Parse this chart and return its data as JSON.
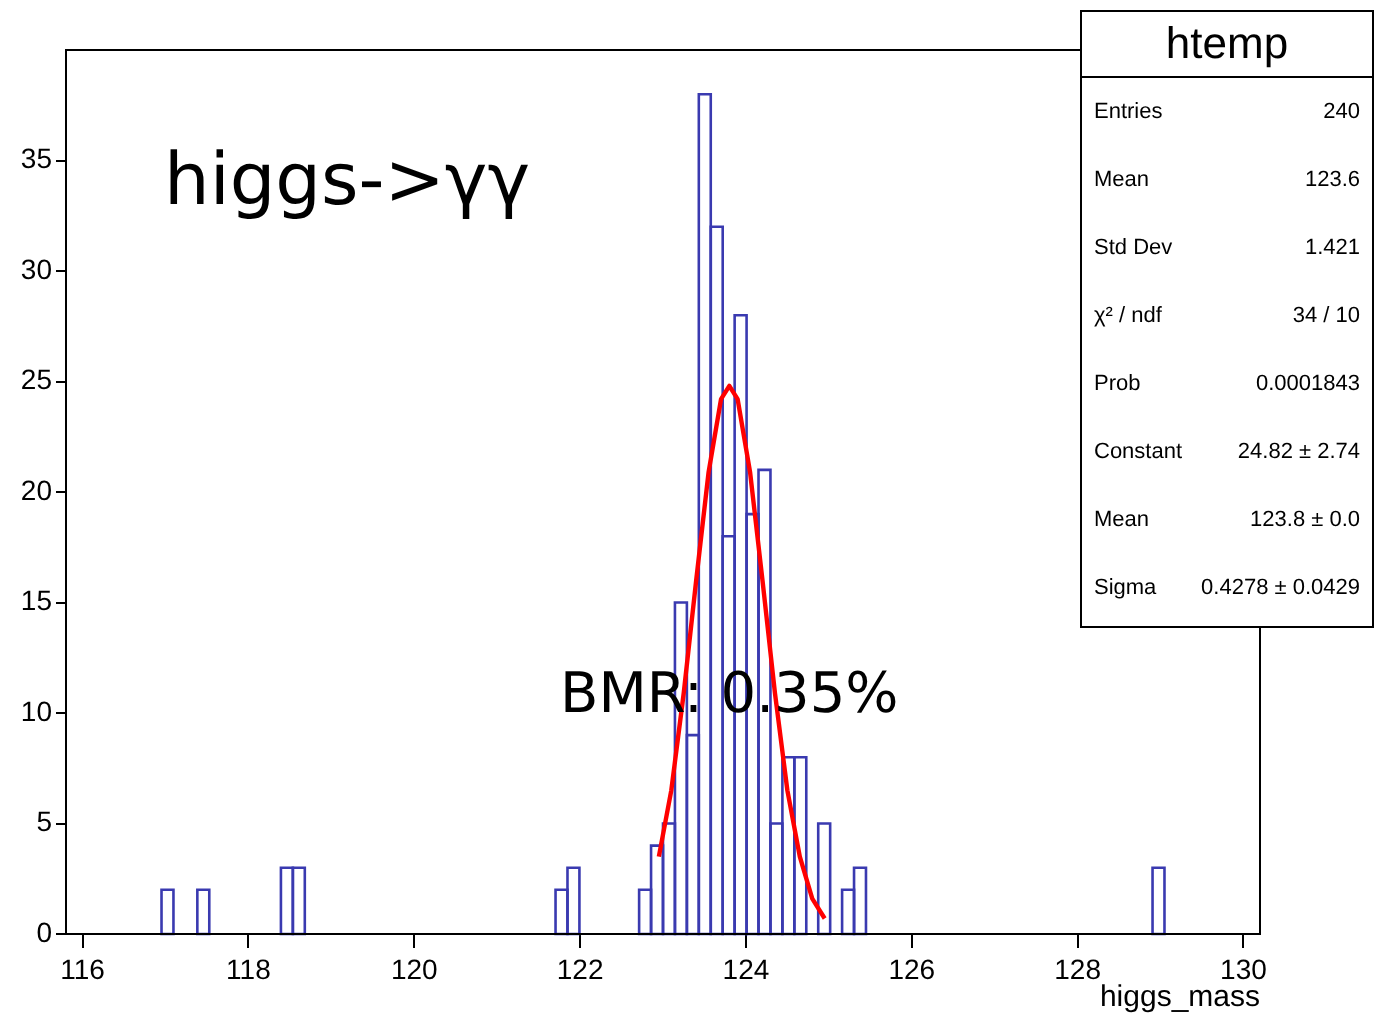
{
  "chart_data": {
    "type": "histogram",
    "xlabel": "higgs_mass",
    "series": [
      {
        "type": "histogram",
        "color": "#3a3ab0",
        "bins": [
          116.952,
          117.096,
          117.384,
          117.528,
          118.392,
          118.536,
          118.68,
          121.704,
          121.848,
          121.992,
          122.712,
          122.856,
          123.0,
          123.144,
          123.288,
          123.432,
          123.576,
          123.72,
          123.864,
          124.008,
          124.152,
          124.296,
          124.44,
          124.584,
          124.728,
          124.872,
          125.016,
          125.16,
          125.304,
          125.448,
          128.904,
          129.048
        ],
        "values": [
          2,
          0,
          2,
          0,
          3,
          3,
          0,
          2,
          3,
          0,
          2,
          4,
          5,
          15,
          9,
          38,
          32,
          18,
          28,
          19,
          21,
          5,
          8,
          8,
          0,
          5,
          0,
          2,
          3,
          0,
          3
        ]
      },
      {
        "type": "line",
        "color": "#ff0000",
        "x": [
          122.95,
          123.1,
          123.25,
          123.4,
          123.55,
          123.7,
          123.8,
          123.9,
          124.05,
          124.2,
          124.35,
          124.5,
          124.65,
          124.8,
          124.95
        ],
        "values": [
          3.5,
          6.5,
          10.9,
          16,
          20.9,
          24.2,
          24.8,
          24.2,
          20.9,
          16,
          10.9,
          6.5,
          3.5,
          1.6,
          0.7
        ]
      }
    ],
    "xlim": [
      115.8,
      130.2
    ],
    "xticks": [
      116,
      118,
      120,
      122,
      124,
      126,
      128,
      130
    ],
    "ylim": [
      0,
      40
    ],
    "yticks": [
      0,
      5,
      10,
      15,
      20,
      25,
      30,
      35
    ],
    "grid": false,
    "legend": false,
    "marker": "none",
    "line_style": "solid",
    "annotations": [
      "higgs->γγ",
      "BMR: 0.35%",
      "htemp",
      "Entries",
      "240",
      "Mean",
      "123.6",
      "Std Dev",
      "1.421",
      "χ² / ndf",
      "34 / 10",
      "Prob",
      "0.0001843",
      "Constant",
      "24.82 ± 2.74",
      "Mean",
      "123.8 ± 0.0",
      "Sigma",
      "0.4278 ± 0.0429"
    ]
  }
}
